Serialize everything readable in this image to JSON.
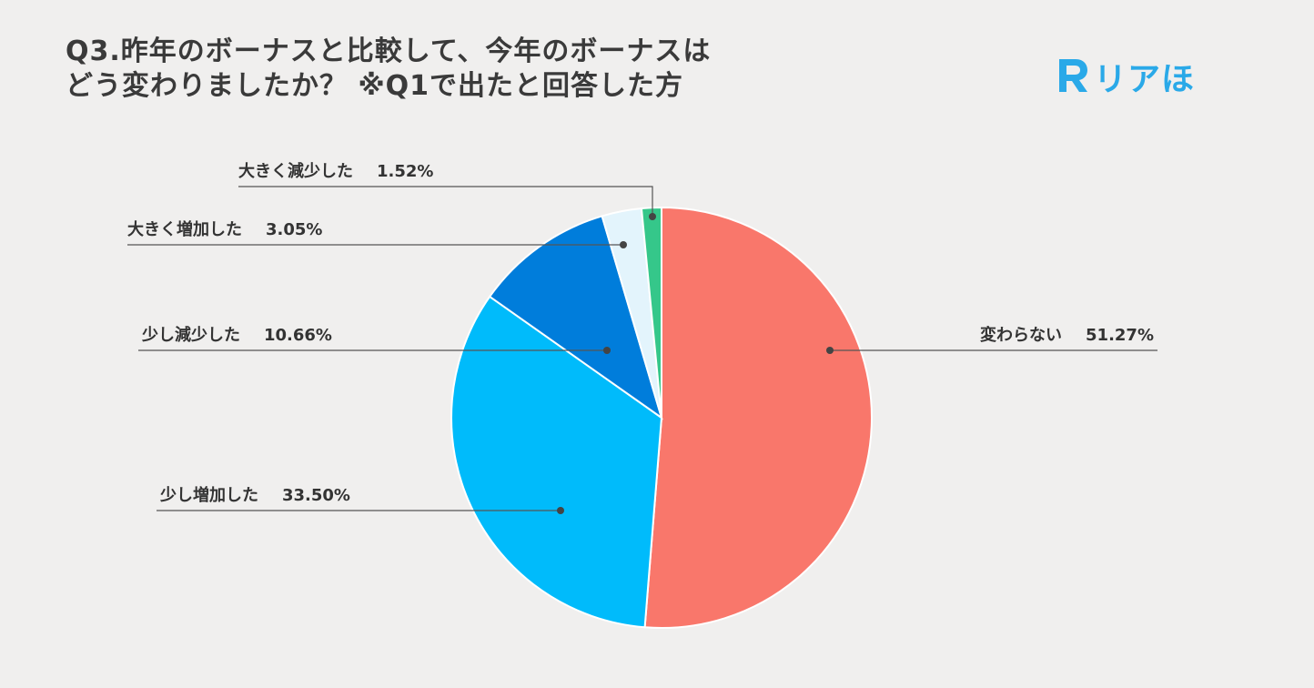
{
  "title_line1": "Q3.昨年のボーナスと比較して、今年のボーナスは",
  "title_line2": "どう変わりましたか？ ※Q1で出たと回答した方",
  "logo": {
    "icon": "R-speech-bubble-icon",
    "text": "リアほ",
    "color": "#2aa9e8"
  },
  "chart_data": {
    "type": "pie",
    "start": "12 o'clock, clockwise",
    "slices": [
      {
        "label": "変わらない",
        "value_text": "51.27%",
        "value": 51.27,
        "color": "#f9776b"
      },
      {
        "label": "少し増加した",
        "value_text": "33.50%",
        "value": 33.5,
        "color": "#00bbfb"
      },
      {
        "label": "少し減少した",
        "value_text": "10.66%",
        "value": 10.66,
        "color": "#007ddb"
      },
      {
        "label": "大きく増加した",
        "value_text": "3.05%",
        "value": 3.05,
        "color": "#e3f4fc"
      },
      {
        "label": "大きく減少した",
        "value_text": "1.52%",
        "value": 1.52,
        "color": "#35c78a"
      }
    ]
  }
}
